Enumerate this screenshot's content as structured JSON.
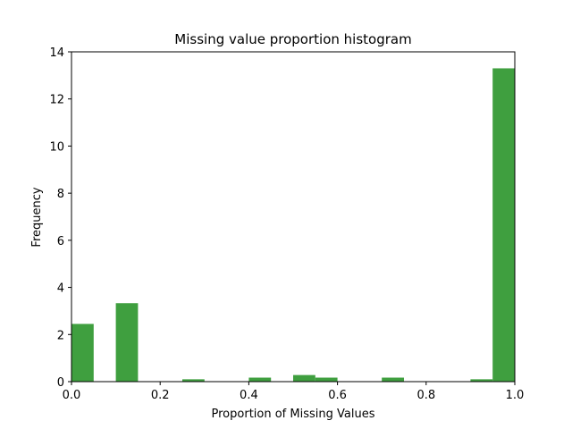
{
  "chart_data": {
    "type": "bar",
    "title": "Missing value proportion histogram",
    "xlabel": "Proportion of Missing Values",
    "ylabel": "Frequency",
    "xlim": [
      0.0,
      1.0
    ],
    "ylim": [
      0,
      14
    ],
    "grid": false,
    "legend": "none",
    "bin_count": 20,
    "bin_edges": [
      0.0,
      0.05,
      0.1,
      0.15,
      0.2,
      0.25,
      0.3,
      0.35,
      0.4,
      0.45,
      0.5,
      0.55,
      0.6,
      0.65,
      0.7,
      0.75,
      0.8,
      0.85,
      0.9,
      0.95,
      1.0
    ],
    "values": [
      2.45,
      0,
      3.33,
      0,
      0,
      0.1,
      0,
      0,
      0.17,
      0,
      0.28,
      0.17,
      0,
      0,
      0.17,
      0,
      0,
      0,
      0.1,
      13.3
    ],
    "bar_color": "#3f9f3f",
    "x_ticks": [
      "0.0",
      "0.2",
      "0.4",
      "0.6",
      "0.8",
      "1.0"
    ],
    "x_tick_values": [
      0.0,
      0.2,
      0.4,
      0.6,
      0.8,
      1.0
    ],
    "y_ticks": [
      "0",
      "2",
      "4",
      "6",
      "8",
      "10",
      "12",
      "14"
    ],
    "y_tick_values": [
      0,
      2,
      4,
      6,
      8,
      10,
      12,
      14
    ]
  }
}
